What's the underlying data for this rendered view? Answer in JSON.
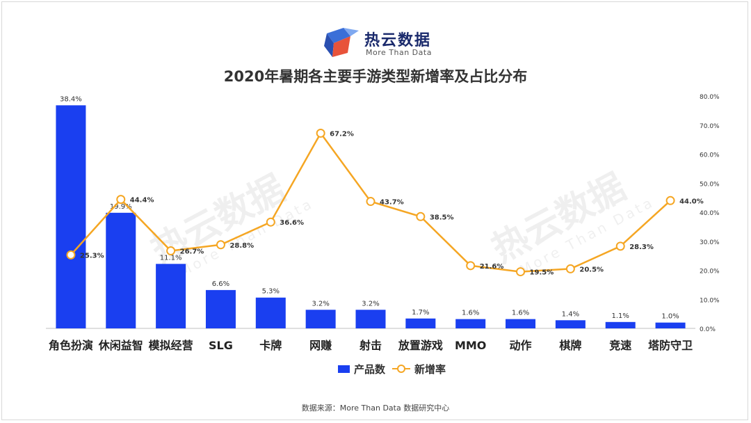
{
  "brand": {
    "name": "热云数据",
    "tagline": "More Than Data"
  },
  "source_note": "数据来源：More Than Data 数据研究中心",
  "colors": {
    "bar": "#1a3ff0",
    "line": "#f5a623",
    "axis_text": "#333333"
  },
  "chart_data": {
    "type": "bar",
    "title": "2020年暑期各主要手游类型新增率及占比分布",
    "categories": [
      "角色扮演",
      "休闲益智",
      "模拟经营",
      "SLG",
      "卡牌",
      "网赚",
      "射击",
      "放置游戏",
      "MMO",
      "动作",
      "棋牌",
      "竞速",
      "塔防守卫"
    ],
    "series": [
      {
        "name": "产品数",
        "type": "bar",
        "values": [
          38.4,
          19.9,
          11.1,
          6.6,
          5.3,
          3.2,
          3.2,
          1.7,
          1.6,
          1.6,
          1.4,
          1.1,
          1.0
        ],
        "labels": [
          "38.4%",
          "19.9%",
          "11.1%",
          "6.6%",
          "5.3%",
          "3.2%",
          "3.2%",
          "1.7%",
          "1.6%",
          "1.6%",
          "1.4%",
          "1.1%",
          "1.0%"
        ]
      },
      {
        "name": "新增率",
        "type": "line",
        "axis": "right",
        "values": [
          25.3,
          44.4,
          26.7,
          28.8,
          36.6,
          67.2,
          43.7,
          38.5,
          21.6,
          19.5,
          20.5,
          28.3,
          44.0
        ],
        "labels": [
          "25.3%",
          "44.4%",
          "26.7%",
          "28.8%",
          "36.6%",
          "67.2%",
          "43.7%",
          "38.5%",
          "21.6%",
          "19.5%",
          "20.5%",
          "28.3%",
          "44.0%"
        ]
      }
    ],
    "right_axis": {
      "ylim": [
        0,
        80
      ],
      "ticks": [
        "0.0%",
        "10.0%",
        "20.0%",
        "30.0%",
        "40.0%",
        "50.0%",
        "60.0%",
        "70.0%",
        "80.0%"
      ]
    },
    "left_axis_ylim": [
      0,
      40
    ],
    "legend_position": "bottom",
    "grid": false
  }
}
